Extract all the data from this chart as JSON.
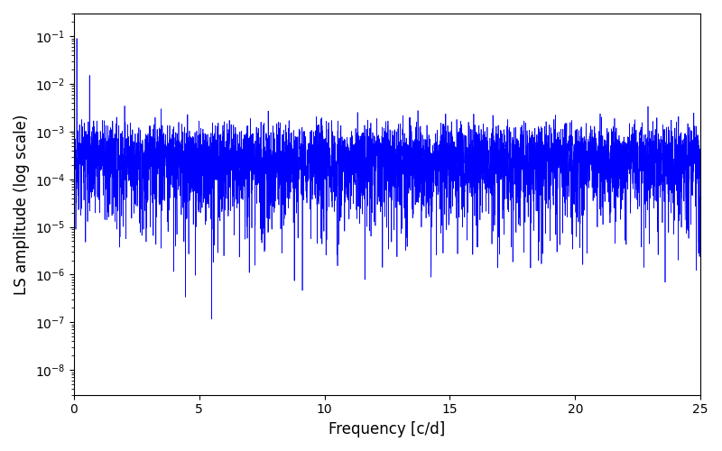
{
  "title": "",
  "xlabel": "Frequency [c/d]",
  "ylabel": "LS amplitude (log scale)",
  "xlim": [
    0,
    25
  ],
  "ylim": [
    3e-09,
    0.3
  ],
  "line_color": "#0000ff",
  "line_width": 0.5,
  "background_color": "#ffffff",
  "freq_min": 0.02,
  "freq_max": 24.98,
  "n_points": 5000,
  "seed": 12345,
  "figsize": [
    8.0,
    5.0
  ],
  "dpi": 100
}
